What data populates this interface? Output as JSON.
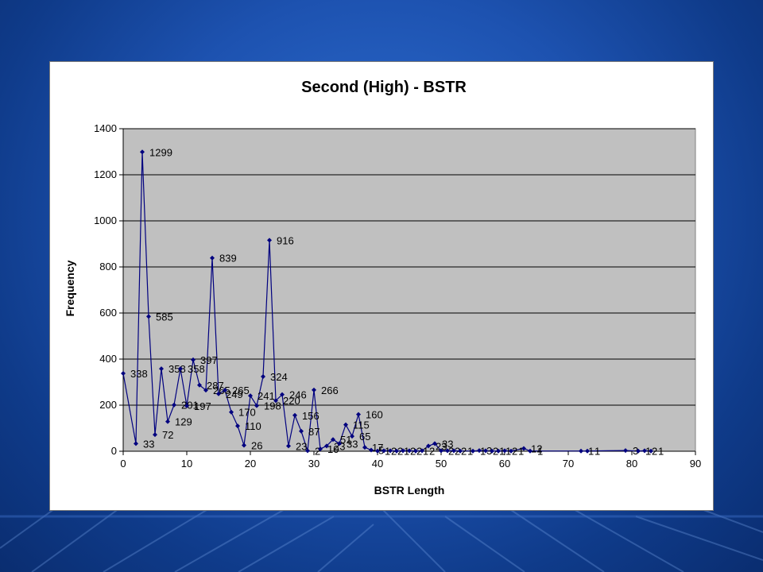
{
  "chart_data": {
    "type": "line",
    "title": "Second (High) - BSTR",
    "xlabel": "BSTR Length",
    "ylabel": "Frequency",
    "xlim": [
      0,
      90
    ],
    "ylim": [
      0,
      1400
    ],
    "xticks": [
      0,
      10,
      20,
      30,
      40,
      50,
      60,
      70,
      80,
      90
    ],
    "yticks": [
      0,
      200,
      400,
      600,
      800,
      1000,
      1200,
      1400
    ],
    "grid": true,
    "legend": "none",
    "colors": {
      "series": "#00007f",
      "plot_bg": "#c0c0c0",
      "grid": "#000000"
    },
    "series": [
      {
        "x": [
          0,
          2,
          3,
          4,
          5,
          6,
          7,
          8,
          9,
          10,
          11,
          12,
          13,
          14,
          15,
          16,
          17,
          18,
          19,
          20,
          21,
          22,
          23,
          24,
          25,
          26,
          27,
          28,
          29,
          30,
          31,
          32,
          33,
          34,
          35,
          36,
          37,
          38,
          39,
          40,
          41,
          42,
          43,
          44,
          45,
          46,
          47,
          48,
          49,
          50,
          51,
          52,
          53,
          55,
          56,
          57,
          58,
          59,
          60,
          61,
          63,
          64,
          72,
          73,
          79,
          81,
          82,
          83
        ],
        "y": [
          338,
          33,
          1299,
          585,
          72,
          358,
          129,
          201,
          358,
          197,
          397,
          287,
          265,
          839,
          249,
          265,
          170,
          110,
          26,
          241,
          198,
          324,
          916,
          220,
          246,
          23,
          156,
          87,
          2,
          266,
          10,
          23,
          51,
          33,
          115,
          65,
          160,
          17,
          5,
          1,
          2,
          2,
          1,
          2,
          2,
          1,
          2,
          23,
          33,
          2,
          2,
          2,
          1,
          1,
          3,
          2,
          1,
          1,
          2,
          1,
          12,
          1,
          1,
          1,
          3,
          1,
          2,
          1
        ],
        "labels": [
          "338",
          "33",
          "1299",
          "585",
          "72",
          "358",
          "129",
          "201",
          "358",
          "197",
          "397",
          "287",
          "265",
          "839",
          "249",
          "265",
          "170",
          "110",
          "26",
          "241",
          "198",
          "324",
          "916",
          "220",
          "246",
          "23",
          "156",
          "87",
          "2",
          "266",
          "10",
          "23",
          "51",
          "33",
          "115",
          "65",
          "160",
          "17",
          "5",
          "1",
          "2",
          "2",
          "1",
          "2",
          "2",
          "1",
          "2",
          "23",
          "33",
          "2",
          "2",
          "2",
          "1",
          "1",
          "3",
          "2",
          "1",
          "1",
          "2",
          "1",
          "12",
          "1",
          "1",
          "1",
          "3",
          "1",
          "2",
          "1"
        ]
      }
    ]
  }
}
